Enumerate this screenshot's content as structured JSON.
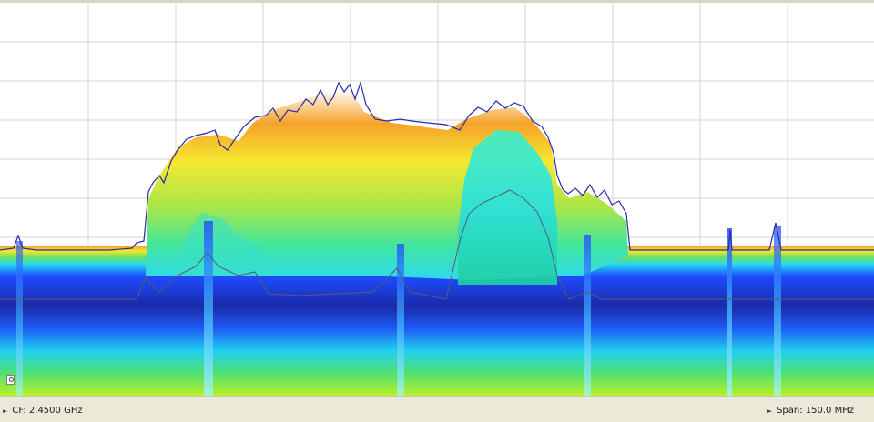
{
  "status_bar": {
    "center_frequency": "CF: 2.4500 GHz",
    "span": "Span: 150.0 MHz"
  },
  "colors": {
    "background": "#ffffff",
    "grid": "#d4d4d4",
    "max_hold_trace": "#2a2aa8",
    "average_trace": "#585878",
    "density_scale": [
      "#ffffff",
      "#f5a623",
      "#f5e52a",
      "#8ae04a",
      "#2ee8e0",
      "#1e50ff",
      "#1a2ea8"
    ]
  },
  "icons": {
    "marker": "marker-icon",
    "status_item": "triangle-right-icon"
  }
}
